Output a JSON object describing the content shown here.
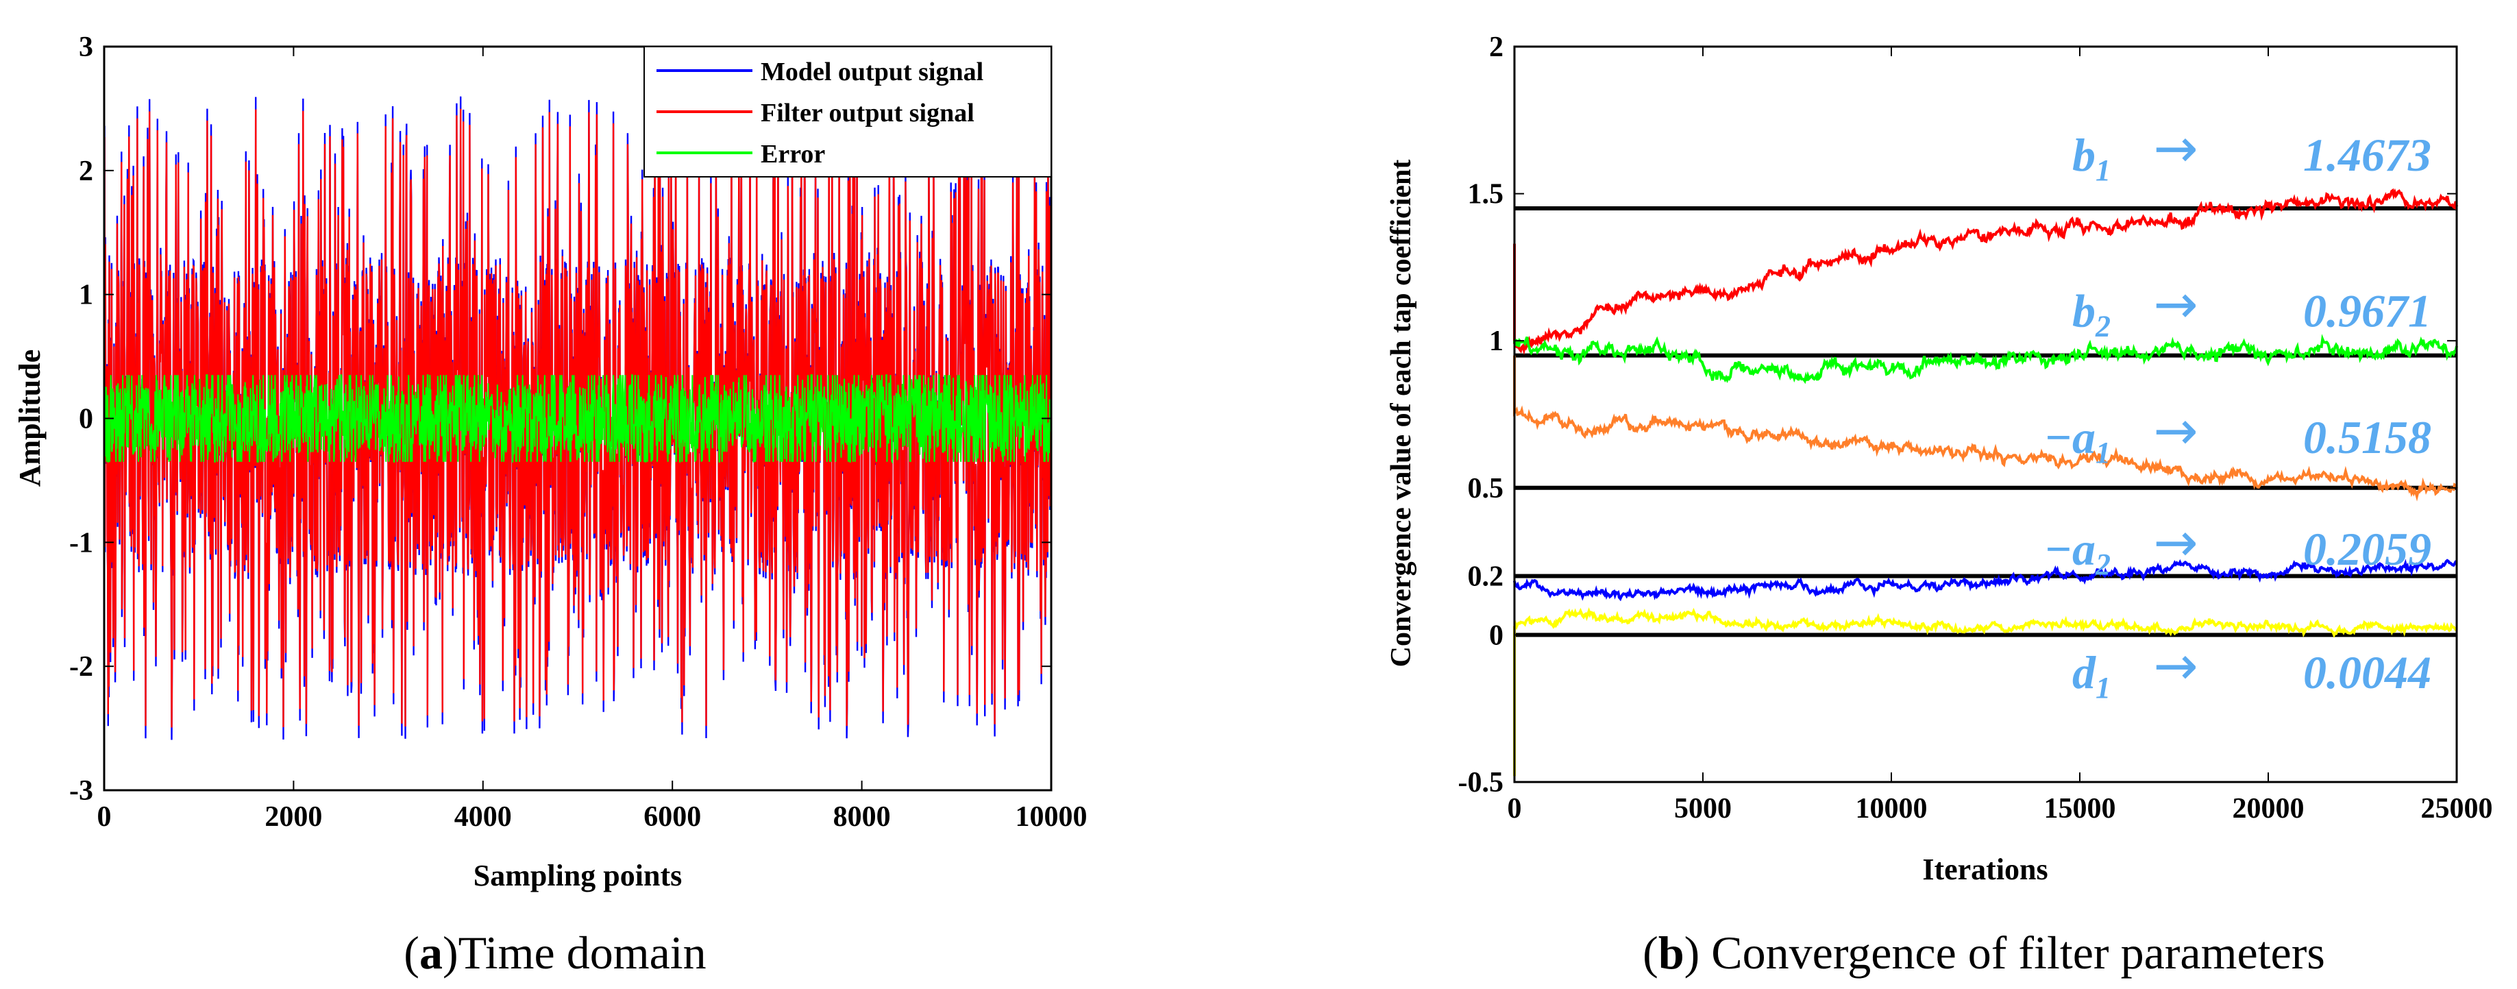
{
  "figure_captions": [
    {
      "prefix": "(",
      "bold": "a",
      "rest": ")Time domain"
    },
    {
      "prefix": "(",
      "bold": "b",
      "rest": ") Convergence of filter parameters"
    }
  ],
  "colors": {
    "model": "#0000ff",
    "filter": "#ff0000",
    "error": "#00ff00",
    "b1": "#ff0000",
    "b2": "#00ff00",
    "a1": "#ff7f2a",
    "a2": "#0000ff",
    "d1": "#ffff00",
    "reference": "#000000",
    "annotation": "#5aaaf0"
  },
  "chart_data": [
    {
      "id": "time-domain",
      "type": "line",
      "title": "",
      "xlabel": "Sampling points",
      "ylabel": "Amplitude",
      "xlim": [
        0,
        10000
      ],
      "ylim": [
        -3,
        3
      ],
      "xticks": [
        0,
        2000,
        4000,
        6000,
        8000,
        10000
      ],
      "xtick_labels": [
        "0",
        "2000",
        "4000",
        "6000",
        "8000",
        "10000"
      ],
      "yticks": [
        3,
        2,
        1,
        0,
        -1,
        -2,
        -3
      ],
      "ytick_labels": [
        "3",
        "2",
        "1",
        "0",
        "-1",
        "-2",
        "-3"
      ],
      "legend": [
        "Model output signal",
        "Filter output signal",
        "Error"
      ],
      "legend_position": "top-right",
      "series": [
        {
          "name": "Model output signal",
          "color_key": "model",
          "amplitude": 1.25,
          "peak": 3,
          "seed": 11
        },
        {
          "name": "Filter output signal",
          "color_key": "filter",
          "amplitude": 1.25,
          "peak": 3,
          "seed": 11
        },
        {
          "name": "Error",
          "color_key": "error",
          "amplitude": 0.28,
          "peak": 0.35,
          "seed": 29
        }
      ]
    },
    {
      "id": "convergence",
      "type": "line",
      "title": "",
      "xlabel": "Iterations",
      "ylabel": "Convergence value of each tap coefficient",
      "xlim": [
        0,
        25000
      ],
      "ylim": [
        -0.5,
        2
      ],
      "xticks": [
        0,
        5000,
        10000,
        15000,
        20000,
        25000
      ],
      "xtick_labels": [
        "0",
        "5000",
        "10000",
        "15000",
        "20000",
        "25000"
      ],
      "yticks": [
        2,
        1.5,
        1,
        0.5,
        0.2,
        0,
        -0.5
      ],
      "ytick_labels": [
        "2",
        "1.5",
        "1",
        "0.5",
        "0.2",
        "0",
        "-0.5"
      ],
      "reference_lines": [
        1.45,
        0.95,
        0.5,
        0.2,
        0.0
      ],
      "series": [
        {
          "name": "b1",
          "color_key": "b1",
          "start": 1.33,
          "points": [
            [
              0,
              1.0
            ],
            [
              1000,
              1.0
            ],
            [
              3000,
              1.12
            ],
            [
              6000,
              1.2
            ],
            [
              10000,
              1.33
            ],
            [
              13000,
              1.37
            ],
            [
              16000,
              1.38
            ],
            [
              18000,
              1.43
            ],
            [
              20000,
              1.45
            ],
            [
              22000,
              1.49
            ],
            [
              25000,
              1.46
            ]
          ],
          "noise": 0.018
        },
        {
          "name": "b2",
          "color_key": "b2",
          "start": 1.0,
          "points": [
            [
              0,
              0.99
            ],
            [
              2000,
              0.95
            ],
            [
              3000,
              0.98
            ],
            [
              5000,
              0.92
            ],
            [
              7000,
              0.88
            ],
            [
              10000,
              0.93
            ],
            [
              15000,
              0.95
            ],
            [
              20000,
              0.96
            ],
            [
              25000,
              0.97
            ]
          ],
          "noise": 0.02
        },
        {
          "name": "-a1",
          "color_key": "a1",
          "start": 0.95,
          "points": [
            [
              0,
              0.76
            ],
            [
              2000,
              0.7
            ],
            [
              4000,
              0.71
            ],
            [
              7000,
              0.67
            ],
            [
              10000,
              0.63
            ],
            [
              13000,
              0.61
            ],
            [
              16000,
              0.59
            ],
            [
              18000,
              0.54
            ],
            [
              21000,
              0.53
            ],
            [
              25000,
              0.51
            ]
          ],
          "noise": 0.016
        },
        {
          "name": "-a2",
          "color_key": "a2",
          "start": 0.18,
          "points": [
            [
              0,
              0.18
            ],
            [
              2000,
              0.13
            ],
            [
              4000,
              0.14
            ],
            [
              6000,
              0.17
            ],
            [
              8000,
              0.17
            ],
            [
              10000,
              0.17
            ],
            [
              12000,
              0.18
            ],
            [
              14000,
              0.2
            ],
            [
              16000,
              0.21
            ],
            [
              18000,
              0.22
            ],
            [
              20000,
              0.21
            ],
            [
              25000,
              0.24
            ]
          ],
          "noise": 0.012
        },
        {
          "name": "d1",
          "color_key": "d1",
          "start": -0.48,
          "points": [
            [
              0,
              0.03
            ],
            [
              1500,
              0.07
            ],
            [
              3000,
              0.06
            ],
            [
              5000,
              0.06
            ],
            [
              7000,
              0.03
            ],
            [
              10000,
              0.03
            ],
            [
              15000,
              0.03
            ],
            [
              20000,
              0.03
            ],
            [
              25000,
              0.03
            ]
          ],
          "noise": 0.012
        }
      ],
      "annotations": [
        {
          "sym": "b",
          "sub": "1",
          "value": "1.4673",
          "at": 1.63
        },
        {
          "sym": "b",
          "sub": "2",
          "value": "0.9671",
          "at": 1.1
        },
        {
          "sym": "−a",
          "sub": "1",
          "value": "0.5158",
          "at": 0.67
        },
        {
          "sym": "−a",
          "sub": "2",
          "value": "0.2059",
          "at": 0.29
        },
        {
          "sym": "d",
          "sub": "1",
          "value": "0.0044",
          "at": -0.13
        }
      ],
      "arrow_glyph": "→"
    }
  ]
}
